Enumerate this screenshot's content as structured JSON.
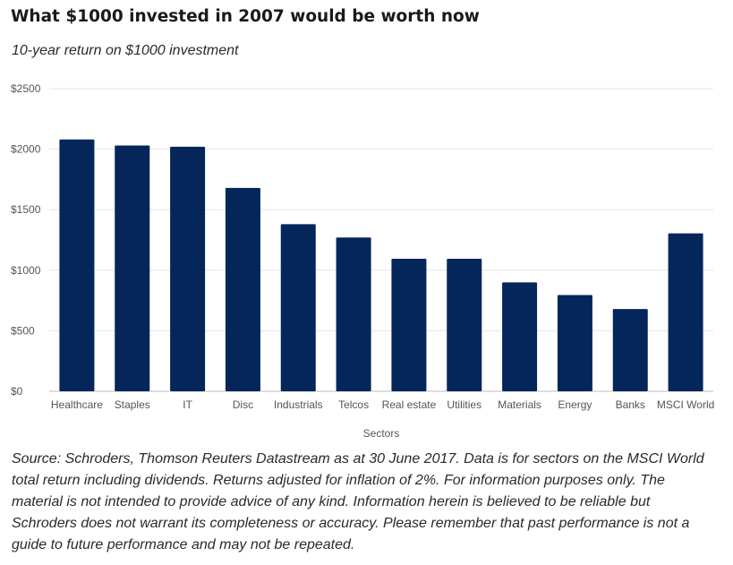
{
  "title": "What $1000 invested in 2007 would be worth now",
  "subtitle": "10-year return on $1000 investment",
  "source": "Source: Schroders, Thomson Reuters Datastream as at 30 June 2017. Data is for sectors on the MSCI World total return including dividends. Returns adjusted for inflation of 2%. For information purposes only. The material is not intended to provide advice of any kind. Information herein is believed to be reliable but Schroders does not warrant its completeness or accuracy. Please remember that past performance is not a guide to future performance and may not be repeated.",
  "colors": {
    "bar": "#04265A",
    "grid": "#e4e4e4",
    "axis": "#bbbbbb",
    "tick_text": "#555555"
  },
  "chart_data": {
    "type": "bar",
    "title": "What $1000 invested in 2007 would be worth now",
    "subtitle": "10-year return on $1000 investment",
    "xlabel": "Sectors",
    "ylabel": "",
    "categories": [
      "Healthcare",
      "Staples",
      "IT",
      "Disc",
      "Industrials",
      "Telcos",
      "Real estate",
      "Utilities",
      "Materials",
      "Energy",
      "Banks",
      "MSCI World"
    ],
    "values": [
      2080,
      2030,
      2020,
      1680,
      1380,
      1270,
      1095,
      1095,
      900,
      795,
      680,
      1305
    ],
    "ylim": [
      0,
      2500
    ],
    "yticks": [
      0,
      500,
      1000,
      1500,
      2000,
      2500
    ],
    "ytick_labels": [
      "$0",
      "$500",
      "$1000",
      "$1500",
      "$2000",
      "$2500"
    ],
    "grid": true,
    "legend": "none"
  }
}
